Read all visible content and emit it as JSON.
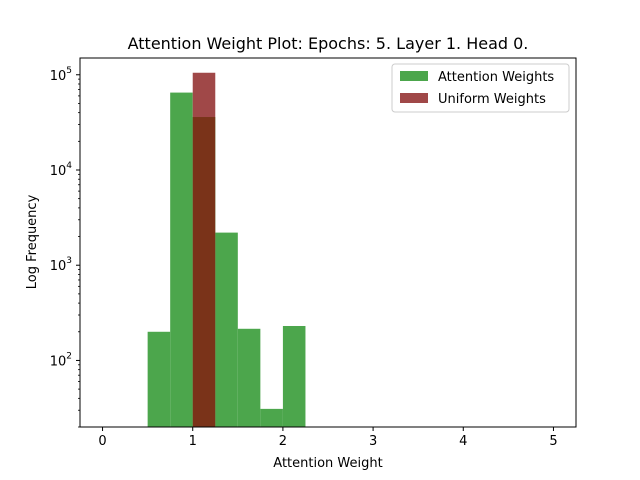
{
  "chart_data": {
    "type": "bar",
    "title": "Attention Weight Plot: Epochs: 5. Layer 1. Head 0.",
    "xlabel": "Attention Weight",
    "ylabel": "Log Frequency",
    "y_scale": "log",
    "xlim": [
      -0.25,
      5.25
    ],
    "ylim": [
      20,
      150000
    ],
    "x_ticks": [
      0,
      1,
      2,
      3,
      4,
      5
    ],
    "y_ticks": [
      {
        "value": 100,
        "base": "10",
        "exp": "2"
      },
      {
        "value": 1000,
        "base": "10",
        "exp": "3"
      },
      {
        "value": 10000,
        "base": "10",
        "exp": "4"
      },
      {
        "value": 100000,
        "base": "10",
        "exp": "5"
      }
    ],
    "bin_width": 0.25,
    "legend_position": "top-right",
    "series": [
      {
        "name": "Attention Weights",
        "color": "#4ca64c",
        "bins": [
          {
            "x0": 0.5,
            "x1": 0.75,
            "count": 200
          },
          {
            "x0": 0.75,
            "x1": 1.0,
            "count": 65000
          },
          {
            "x0": 1.0,
            "x1": 1.25,
            "count": 36000
          },
          {
            "x0": 1.25,
            "x1": 1.5,
            "count": 2200
          },
          {
            "x0": 1.5,
            "x1": 1.75,
            "count": 215
          },
          {
            "x0": 1.75,
            "x1": 2.0,
            "count": 31
          },
          {
            "x0": 2.0,
            "x1": 2.25,
            "count": 230
          }
        ]
      },
      {
        "name": "Uniform Weights",
        "color": "#a04848",
        "bins": [
          {
            "x0": 1.0,
            "x1": 1.25,
            "count": 105000
          }
        ]
      }
    ],
    "overlap_color": "#7a3319"
  }
}
